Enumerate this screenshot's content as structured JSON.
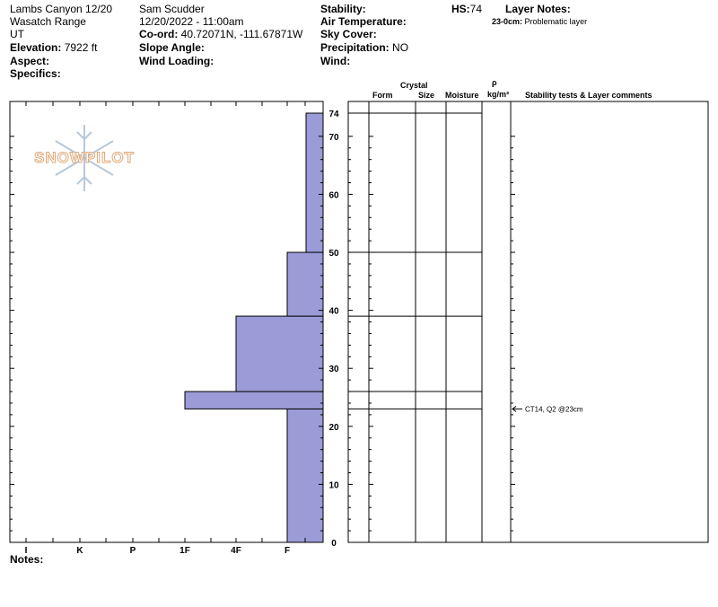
{
  "header": {
    "location": "Lambs Canyon 12/20",
    "range": "Wasatch Range",
    "state": "UT",
    "elevation_label": "Elevation:",
    "elevation_value": "7922 ft",
    "aspect_label": "Aspect:",
    "specifics_label": "Specifics:",
    "observer": "Sam Scudder",
    "datetime": "12/20/2022 - 11:00am",
    "coord_label": "Co-ord:",
    "coord_value": "40.72071N, -111.67871W",
    "slope_label": "Slope Angle:",
    "wind_loading_label": "Wind Loading:",
    "stability_label": "Stability:",
    "air_temp_label": "Air Temperature:",
    "sky_cover_label": "Sky Cover:",
    "precip_label": "Precipitation:",
    "precip_value": "NO",
    "wind_label": "Wind:",
    "hs_label": "HS:",
    "hs_value": "74",
    "layer_notes_label": "Layer Notes:",
    "layer_note_range": "23-0cm:",
    "layer_note_text": "Problematic layer"
  },
  "logo": {
    "text": "SNOWPILOT",
    "icon": "snowflake-icon",
    "color": "#e8b890"
  },
  "notes_label": "Notes:",
  "table_headers": {
    "form": "Form",
    "crystal": "Crystal",
    "size": "Size",
    "moisture": "Moisture",
    "rho": "ρ",
    "density": "kg/m³",
    "comments": "Stability tests & Layer comments"
  },
  "colors": {
    "fill": "#9b9bd8",
    "line": "#000000"
  },
  "chart_data": {
    "type": "bar",
    "orientation": "horizontal",
    "title": "",
    "xlabel": "",
    "ylabel": "",
    "x_categories": [
      "I",
      "K",
      "P",
      "1F",
      "4F",
      "F"
    ],
    "y_ticks": [
      "0",
      "10",
      "20",
      "30",
      "40",
      "50",
      "60",
      "70",
      "74"
    ],
    "ylim": [
      0,
      74
    ],
    "layers": [
      {
        "bottom": 0,
        "top": 23,
        "hardness": "F"
      },
      {
        "bottom": 23,
        "top": 26,
        "hardness": "1F"
      },
      {
        "bottom": 26,
        "top": 39,
        "hardness": "4F"
      },
      {
        "bottom": 39,
        "top": 50,
        "hardness": "F"
      },
      {
        "bottom": 50,
        "top": 74,
        "hardness": "F-"
      }
    ],
    "layer_boundaries": [
      74,
      50,
      39,
      26,
      23
    ],
    "annotations": [
      {
        "depth": 23,
        "text": "CT14, Q2 @23cm"
      }
    ]
  }
}
